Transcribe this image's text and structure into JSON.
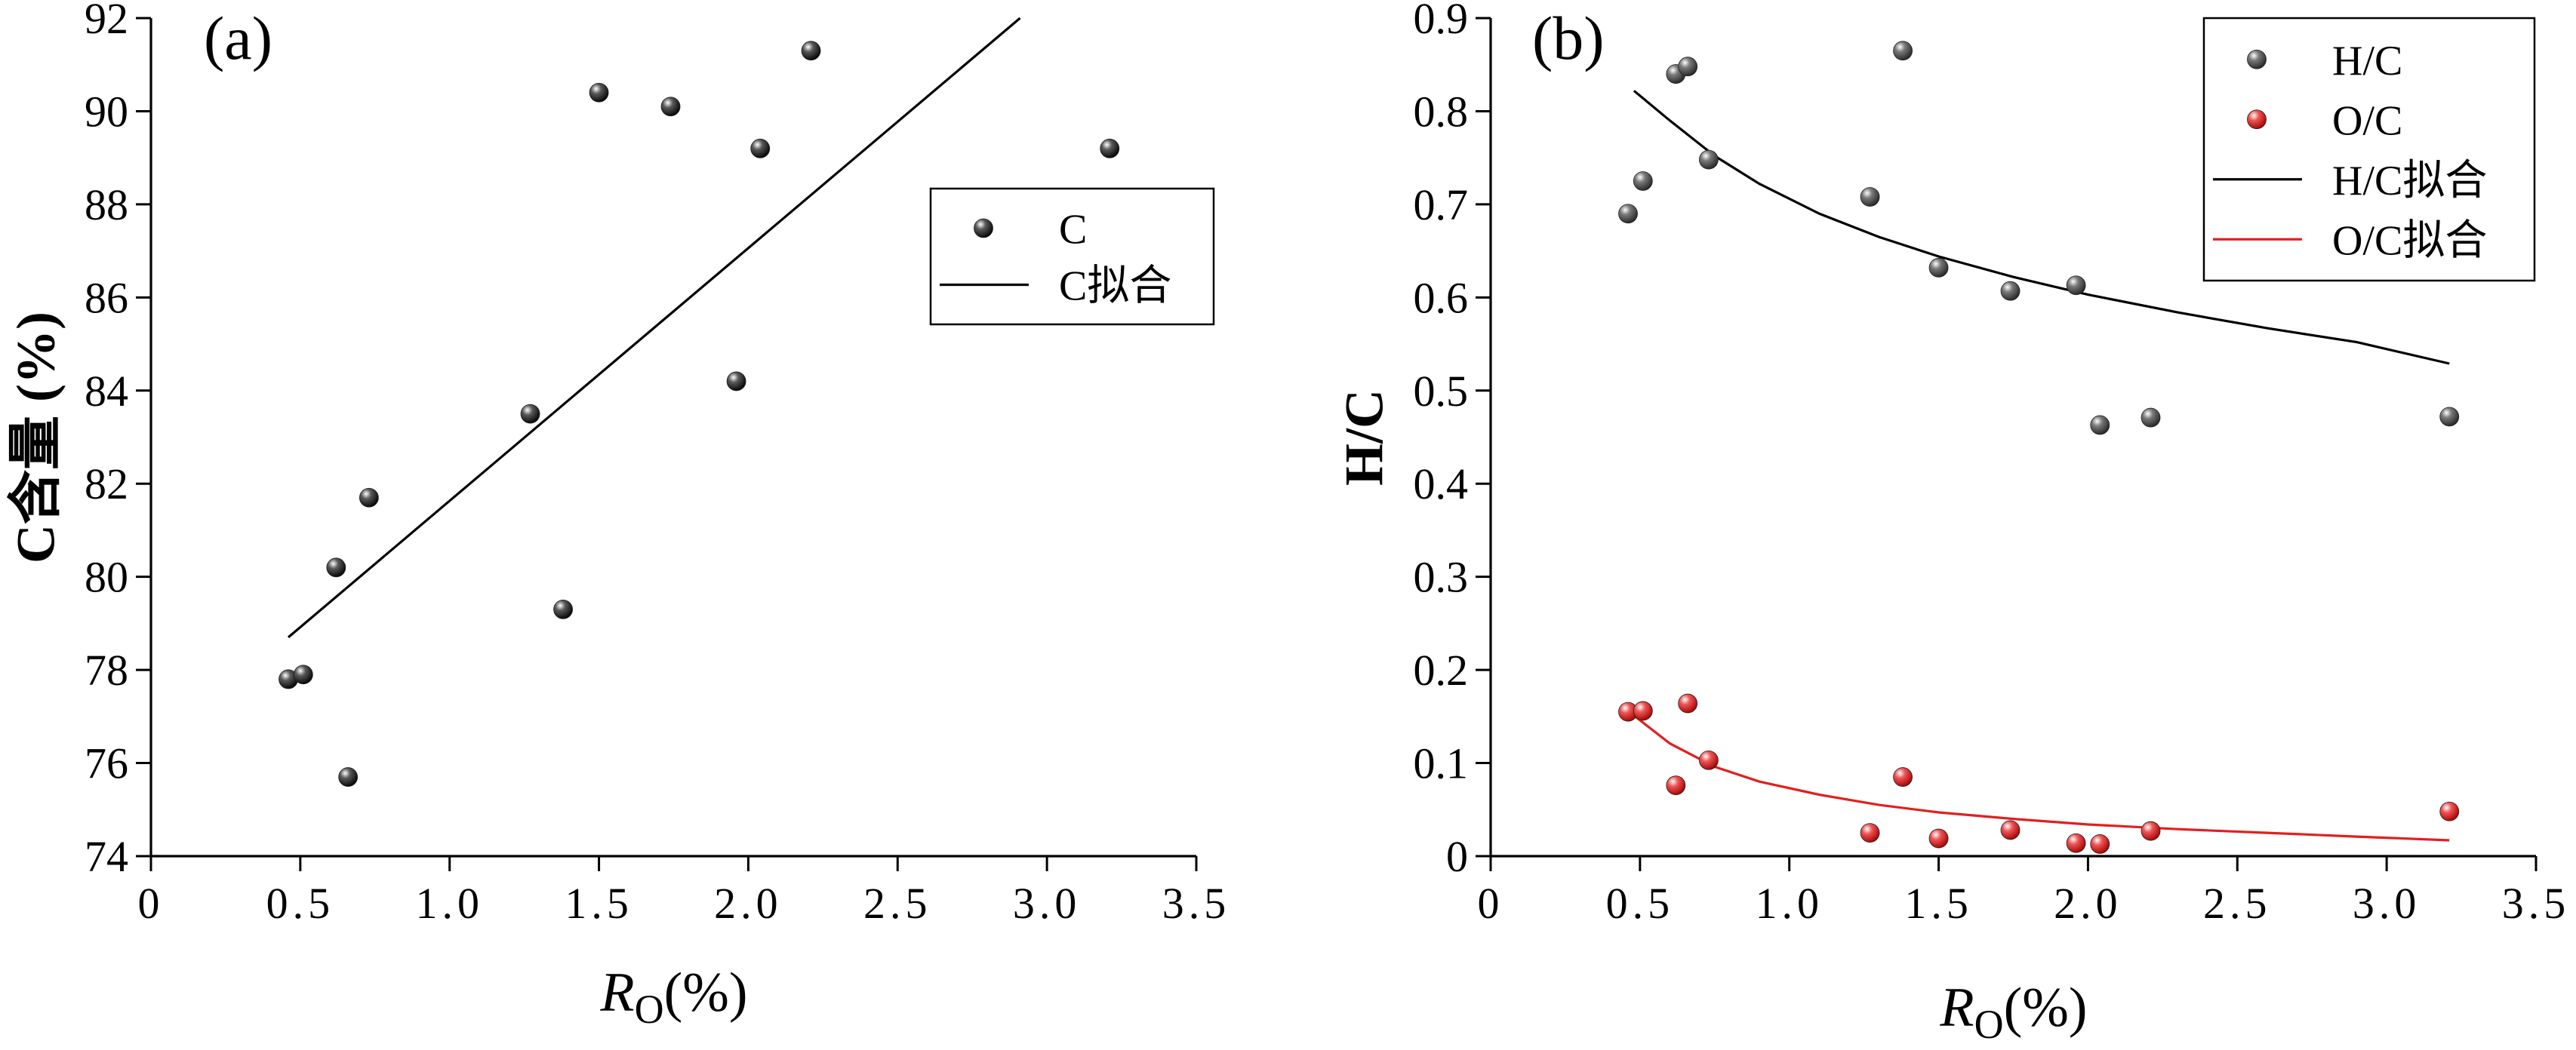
{
  "chart_data": [
    {
      "type": "scatter",
      "panel_label": "(a)",
      "xlabel": "R",
      "xlabel_sub": "O",
      "xlabel_suffix": "(%)",
      "ylabel": "C含量 (%)",
      "xlim": [
        0,
        3.5
      ],
      "ylim": [
        74,
        92
      ],
      "xticks": [
        "0",
        "0.5",
        "1.0",
        "1.5",
        "2.0",
        "2.5",
        "3.0",
        "3.5"
      ],
      "yticks": [
        "74",
        "76",
        "78",
        "80",
        "82",
        "84",
        "86",
        "88",
        "90",
        "92"
      ],
      "grid": false,
      "legend_position": "upper-right",
      "series": [
        {
          "name": "C",
          "kind": "points",
          "color": "#111111",
          "x": [
            0.46,
            0.51,
            0.62,
            0.66,
            0.73,
            1.27,
            1.38,
            1.5,
            1.74,
            1.96,
            2.04,
            2.21,
            3.21
          ],
          "y": [
            77.8,
            77.9,
            80.2,
            75.7,
            81.7,
            83.5,
            79.3,
            90.4,
            90.1,
            84.2,
            89.2,
            91.3,
            89.2
          ]
        },
        {
          "name": "C拟合",
          "kind": "line",
          "color": "#000000",
          "x": [
            0.46,
            2.91
          ],
          "y": [
            78.7,
            92.0
          ]
        }
      ]
    },
    {
      "type": "scatter",
      "panel_label": "(b)",
      "xlabel": "R",
      "xlabel_sub": "O",
      "xlabel_suffix": "(%)",
      "ylabel": "H/C",
      "xlim": [
        0,
        3.5
      ],
      "ylim": [
        0,
        0.9
      ],
      "xticks": [
        "0",
        "0.5",
        "1.0",
        "1.5",
        "2.0",
        "2.5",
        "3.0",
        "3.5"
      ],
      "yticks": [
        "0",
        "0.1",
        "0.2",
        "0.3",
        "0.4",
        "0.5",
        "0.6",
        "0.7",
        "0.8",
        "0.9"
      ],
      "grid": false,
      "legend_position": "upper-right",
      "series": [
        {
          "name": "H/C",
          "kind": "points",
          "color": "#555555",
          "x": [
            0.46,
            0.51,
            0.62,
            0.66,
            0.73,
            1.27,
            1.38,
            1.5,
            1.74,
            1.96,
            2.04,
            2.21,
            3.21
          ],
          "y": [
            0.69,
            0.725,
            0.84,
            0.848,
            0.748,
            0.708,
            0.865,
            0.632,
            0.607,
            0.613,
            0.463,
            0.471,
            0.472
          ]
        },
        {
          "name": "O/C",
          "kind": "points",
          "color": "#e8403f",
          "x": [
            0.46,
            0.51,
            0.62,
            0.66,
            0.73,
            1.27,
            1.38,
            1.5,
            1.74,
            1.96,
            2.04,
            2.21,
            3.21
          ],
          "y": [
            0.155,
            0.156,
            0.076,
            0.164,
            0.103,
            0.025,
            0.085,
            0.019,
            0.028,
            0.014,
            0.013,
            0.027,
            0.048
          ]
        },
        {
          "name": "H/C拟合",
          "kind": "line",
          "color": "#000000",
          "x": [
            0.48,
            0.6,
            0.75,
            0.9,
            1.1,
            1.3,
            1.5,
            1.75,
            2.0,
            2.3,
            2.6,
            2.9,
            3.21
          ],
          "y": [
            0.822,
            0.79,
            0.752,
            0.722,
            0.69,
            0.665,
            0.644,
            0.622,
            0.603,
            0.584,
            0.567,
            0.552,
            0.529
          ]
        },
        {
          "name": "O/C拟合",
          "kind": "line",
          "color": "#e0201f",
          "x": [
            0.48,
            0.6,
            0.75,
            0.9,
            1.1,
            1.3,
            1.5,
            1.75,
            2.0,
            2.3,
            2.6,
            2.9,
            3.21
          ],
          "y": [
            0.151,
            0.121,
            0.096,
            0.08,
            0.066,
            0.055,
            0.047,
            0.04,
            0.034,
            0.029,
            0.025,
            0.021,
            0.017
          ]
        }
      ]
    }
  ]
}
